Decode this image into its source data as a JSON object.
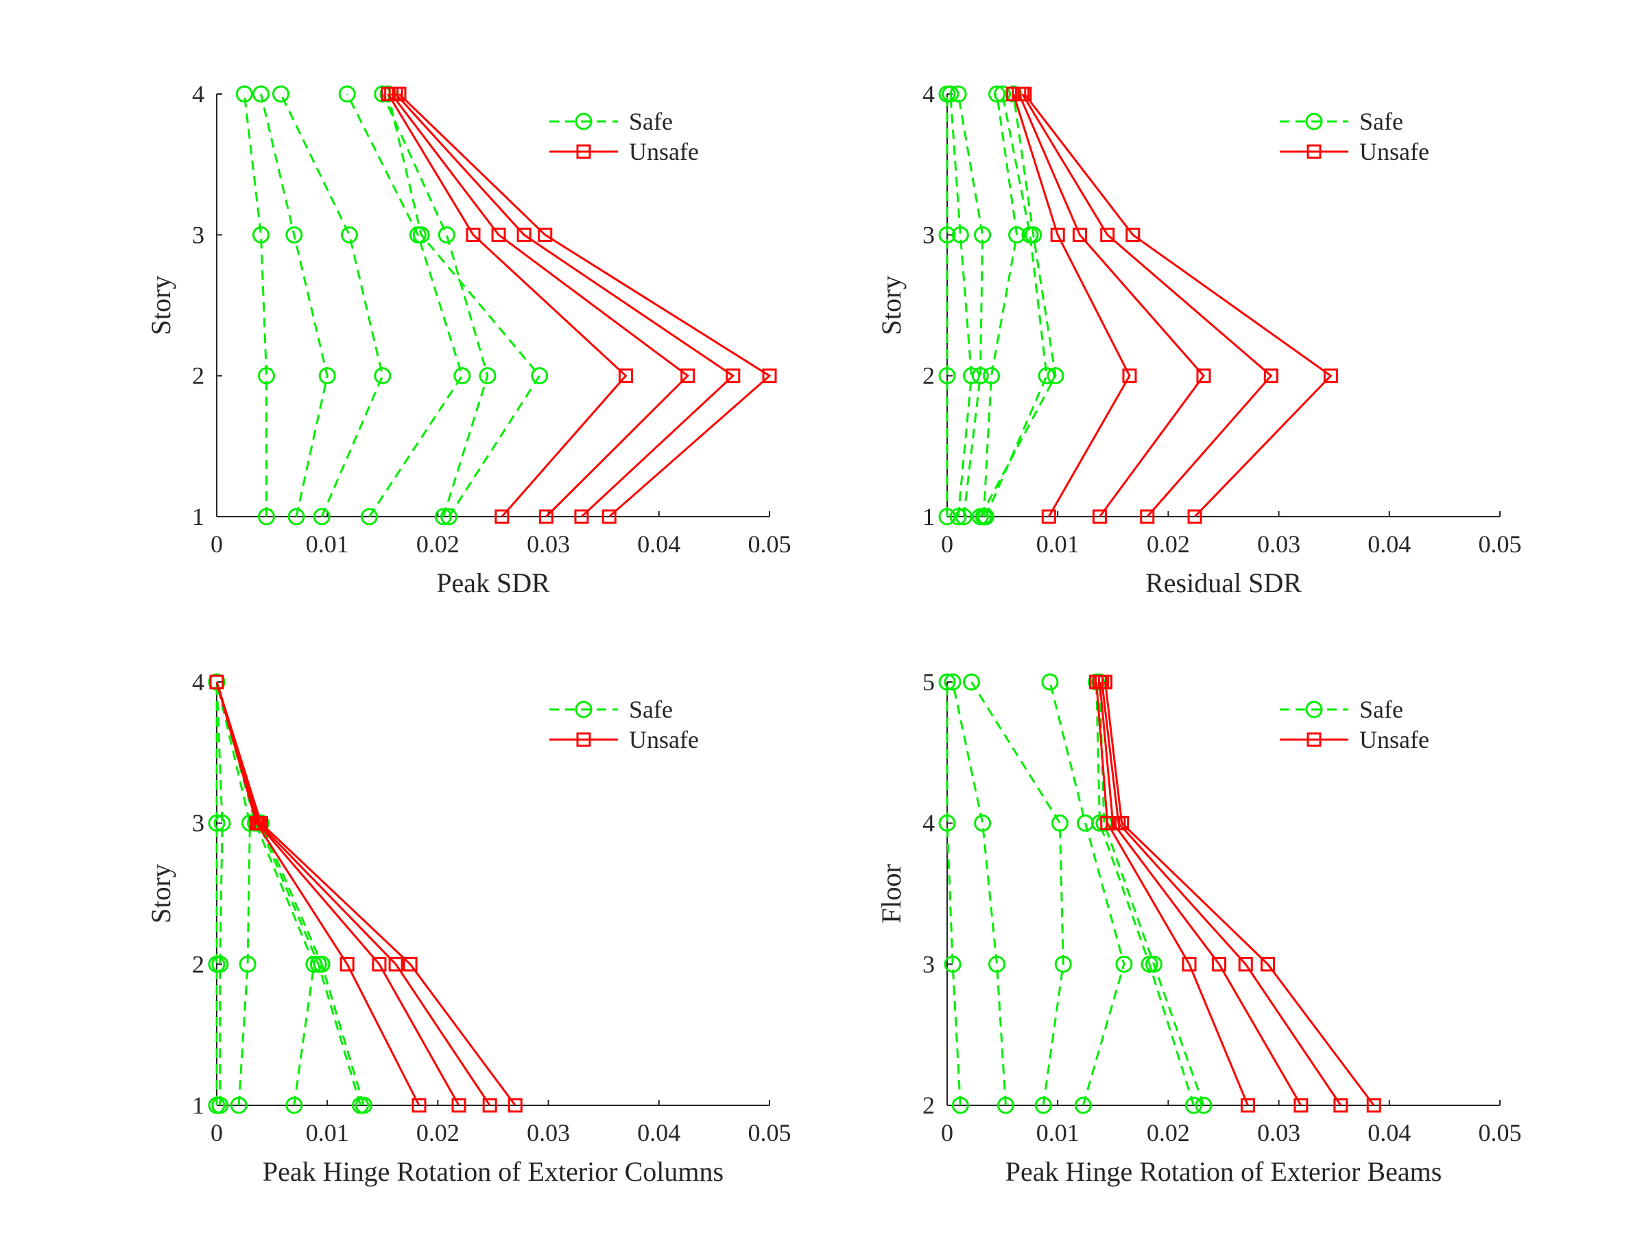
{
  "colors": {
    "safe": "#00ee00",
    "unsafe": "#ff0000",
    "axis": "#262626"
  },
  "legend": {
    "safe_label": "Safe",
    "unsafe_label": "Unsafe",
    "placement": "top-right"
  },
  "chart_data": [
    {
      "type": "line",
      "xlabel": "Peak SDR",
      "ylabel": "Story",
      "xlim": [
        0,
        0.05
      ],
      "ylim": [
        1,
        4
      ],
      "xticks": [
        "0",
        "0.01",
        "0.02",
        "0.03",
        "0.04",
        "0.05"
      ],
      "yticks": [
        "1",
        "2",
        "3",
        "4"
      ],
      "y": [
        1,
        2,
        3,
        4
      ],
      "safe": [
        [
          0.0045,
          0.0045,
          0.004,
          0.0025
        ],
        [
          0.0072,
          0.01,
          0.007,
          0.004
        ],
        [
          0.0095,
          0.015,
          0.012,
          0.0058
        ],
        [
          0.0138,
          0.0222,
          0.0182,
          0.0118
        ],
        [
          0.0205,
          0.0245,
          0.0208,
          0.015
        ],
        [
          0.021,
          0.0292,
          0.0185,
          0.0155
        ]
      ],
      "unsafe": [
        [
          0.0258,
          0.037,
          0.0232,
          0.0155
        ],
        [
          0.0298,
          0.0426,
          0.0255,
          0.0158
        ],
        [
          0.033,
          0.0467,
          0.0278,
          0.0162
        ],
        [
          0.0355,
          0.05,
          0.0297,
          0.0165
        ]
      ]
    },
    {
      "type": "line",
      "xlabel": "Residual SDR",
      "ylabel": "Story",
      "xlim": [
        0,
        0.05
      ],
      "ylim": [
        1,
        4
      ],
      "xticks": [
        "0",
        "0.01",
        "0.02",
        "0.03",
        "0.04",
        "0.05"
      ],
      "yticks": [
        "1",
        "2",
        "3",
        "4"
      ],
      "y": [
        1,
        2,
        3,
        4
      ],
      "safe": [
        [
          0.0,
          0.0,
          0.0,
          0.0
        ],
        [
          0.001,
          0.0022,
          0.0012,
          0.0003
        ],
        [
          0.0015,
          0.003,
          0.0032,
          0.001
        ],
        [
          0.0033,
          0.004,
          0.0063,
          0.0045
        ],
        [
          0.0035,
          0.009,
          0.0075,
          0.005
        ],
        [
          0.003,
          0.0098,
          0.0078,
          0.006
        ]
      ],
      "unsafe": [
        [
          0.0092,
          0.0165,
          0.01,
          0.006
        ],
        [
          0.0138,
          0.0232,
          0.012,
          0.0065
        ],
        [
          0.0181,
          0.0293,
          0.0145,
          0.0068
        ],
        [
          0.0224,
          0.0347,
          0.0168,
          0.007
        ]
      ]
    },
    {
      "type": "line",
      "xlabel": "Peak Hinge Rotation of Exterior Columns",
      "ylabel": "Story",
      "xlim": [
        0,
        0.05
      ],
      "ylim": [
        1,
        4
      ],
      "xticks": [
        "0",
        "0.01",
        "0.02",
        "0.03",
        "0.04",
        "0.05"
      ],
      "yticks": [
        "1",
        "2",
        "3",
        "4"
      ],
      "y": [
        1,
        2,
        3,
        4
      ],
      "safe": [
        [
          0.0,
          0.0,
          0.0,
          0.0
        ],
        [
          0.0003,
          0.0003,
          0.0005,
          0.0
        ],
        [
          0.002,
          0.0028,
          0.003,
          0.0
        ],
        [
          0.007,
          0.0088,
          0.0035,
          0.0
        ],
        [
          0.013,
          0.0092,
          0.0038,
          0.0
        ],
        [
          0.0133,
          0.0095,
          0.004,
          0.0
        ]
      ],
      "unsafe": [
        [
          0.0183,
          0.0118,
          0.0036,
          0.0
        ],
        [
          0.0219,
          0.0147,
          0.0037,
          0.0
        ],
        [
          0.0247,
          0.0162,
          0.0038,
          0.0
        ],
        [
          0.027,
          0.0175,
          0.004,
          0.0
        ]
      ]
    },
    {
      "type": "line",
      "xlabel": "Peak Hinge Rotation of Exterior Beams",
      "ylabel": "Floor",
      "xlim": [
        0,
        0.05
      ],
      "ylim": [
        2,
        5
      ],
      "xticks": [
        "0",
        "0.01",
        "0.02",
        "0.03",
        "0.04",
        "0.05"
      ],
      "yticks": [
        "2",
        "3",
        "4",
        "5"
      ],
      "y": [
        2,
        3,
        4,
        5
      ],
      "safe": [
        [
          0.0012,
          0.0005,
          0.0,
          0.0
        ],
        [
          0.0053,
          0.0045,
          0.0032,
          0.0005
        ],
        [
          0.0087,
          0.0105,
          0.0102,
          0.0022
        ],
        [
          0.0123,
          0.016,
          0.0125,
          0.0093
        ],
        [
          0.0223,
          0.0183,
          0.0138,
          0.0135
        ],
        [
          0.0232,
          0.0187,
          0.0142,
          0.0138
        ]
      ],
      "unsafe": [
        [
          0.0272,
          0.0219,
          0.0145,
          0.0135
        ],
        [
          0.032,
          0.0246,
          0.015,
          0.0138
        ],
        [
          0.0356,
          0.027,
          0.0155,
          0.014
        ],
        [
          0.0386,
          0.029,
          0.0158,
          0.0143
        ]
      ]
    }
  ]
}
